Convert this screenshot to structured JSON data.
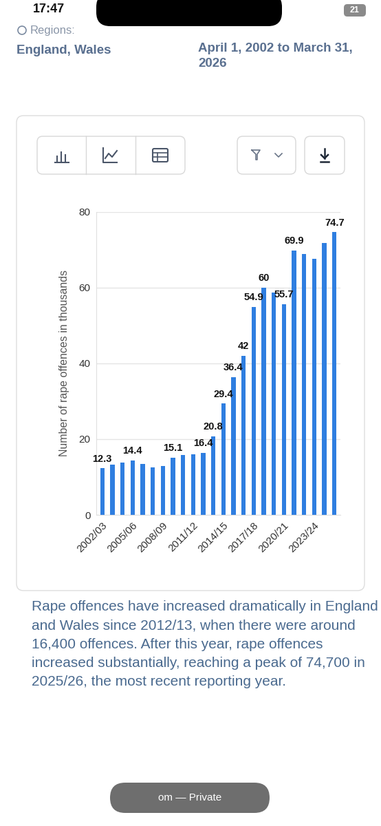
{
  "page": {
    "status_time": "17:47",
    "battery": "21",
    "regions_label": "Regions:",
    "regions": "England, Wales",
    "time_period": "April 1, 2002 to March 31, 2026",
    "description": "Rape offences have increased dramatically in England and Wales since 2012/13, when there were around 16,400 offences. After this year, rape offences increased substantially, reaching a peak of 74,700 in 2025/26, the most recent reporting year.",
    "browser_pill": "om — Private"
  },
  "chart_data": {
    "type": "bar",
    "categories": [
      "2002/03",
      null,
      null,
      "2005/06",
      null,
      null,
      "2008/09",
      null,
      null,
      "2011/12",
      null,
      null,
      "2014/15",
      null,
      null,
      "2017/18",
      null,
      null,
      "2020/21",
      null,
      null,
      "2023/24",
      null,
      null
    ],
    "values": [
      12.3,
      13.2,
      13.8,
      14.4,
      13.5,
      12.5,
      13.0,
      15.1,
      15.9,
      16.0,
      16.4,
      20.8,
      29.4,
      36.4,
      42,
      54.9,
      60,
      58.7,
      55.7,
      69.9,
      68.9,
      67.7,
      71.9,
      74.7
    ],
    "value_labels": [
      "12.3",
      null,
      null,
      "14.4",
      null,
      null,
      null,
      "15.1",
      null,
      null,
      "16.4",
      "20.8",
      "29.4",
      "36.4",
      "42",
      "54.9",
      "60",
      null,
      "55.7",
      "69.9",
      null,
      null,
      null,
      "74.7"
    ],
    "data_labels": true,
    "color": "#2f7ee0",
    "y_label": "Number of rape offences in thousands",
    "ylim": [
      0,
      80
    ],
    "yticks": [
      0,
      20,
      40,
      60,
      80
    ],
    "grid": true
  }
}
